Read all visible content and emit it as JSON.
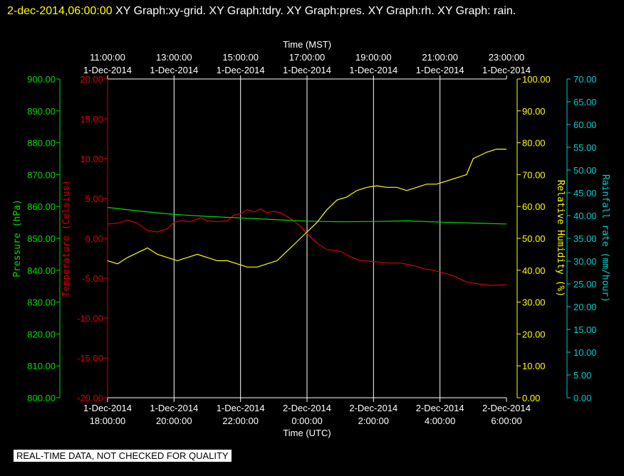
{
  "header": {
    "timestamp": "2-dec-2014,06:00:00",
    "graphs_text": " XY Graph:xy-grid.  XY Graph:tdry.  XY Graph:pres.  XY Graph:rh.  XY Graph: rain."
  },
  "notice": "REAL-TIME DATA, NOT CHECKED FOR QUALITY",
  "colors": {
    "pressure": "#00dd00",
    "temperature": "#dd0000",
    "humidity": "#ffff00",
    "rainfall": "#00cccc",
    "grid": "#ffffff"
  },
  "chart_data": {
    "type": "line",
    "top_axis": {
      "title": "Time (MST)",
      "ticks": [
        [
          "11:00:00",
          "1-Dec-2014"
        ],
        [
          "13:00:00",
          "1-Dec-2014"
        ],
        [
          "15:00:00",
          "1-Dec-2014"
        ],
        [
          "17:00:00",
          "1-Dec-2014"
        ],
        [
          "19:00:00",
          "1-Dec-2014"
        ],
        [
          "21:00:00",
          "1-Dec-2014"
        ],
        [
          "23:00:00",
          "1-Dec-2014"
        ]
      ]
    },
    "bottom_axis": {
      "title": "Time (UTC)",
      "ticks": [
        [
          "1-Dec-2014",
          "18:00:00"
        ],
        [
          "1-Dec-2014",
          "20:00:00"
        ],
        [
          "1-Dec-2014",
          "22:00:00"
        ],
        [
          "2-Dec-2014",
          "0:00:00"
        ],
        [
          "2-Dec-2014",
          "2:00:00"
        ],
        [
          "2-Dec-2014",
          "4:00:00"
        ],
        [
          "2-Dec-2014",
          "6:00:00"
        ]
      ],
      "range_hours": [
        0,
        12
      ]
    },
    "axes": {
      "pressure": {
        "label": "Pressure (hPa)",
        "range": [
          800,
          900
        ],
        "ticks": [
          "900.00",
          "890.00",
          "880.00",
          "870.00",
          "860.00",
          "850.00",
          "840.00",
          "830.00",
          "820.00",
          "810.00",
          "800.00"
        ]
      },
      "temperature": {
        "label": "Temperature (Celsius)",
        "range": [
          -20,
          20
        ],
        "ticks": [
          "20.00",
          "15.00",
          "10.00",
          "5.00",
          "0.00",
          "-5.00",
          "-10.00",
          "-15.00",
          "-20.00"
        ]
      },
      "humidity": {
        "label": "Relative Humidity (%)",
        "range": [
          0,
          100
        ],
        "ticks": [
          "100.00",
          "90.00",
          "80.00",
          "70.00",
          "60.00",
          "50.00",
          "40.00",
          "30.00",
          "20.00",
          "10.00",
          "0.00"
        ]
      },
      "rainfall": {
        "label": "Rainfall rate (mm/hour)",
        "range": [
          0,
          70
        ],
        "ticks": [
          "70.00",
          "65.00",
          "60.00",
          "55.00",
          "50.00",
          "45.00",
          "40.00",
          "35.00",
          "30.00",
          "25.00",
          "20.00",
          "15.00",
          "10.00",
          "5.00",
          "0.00"
        ]
      }
    },
    "series": [
      {
        "name": "tdry",
        "axis": "temperature",
        "points": [
          [
            0,
            1.8
          ],
          [
            0.3,
            1.9
          ],
          [
            0.6,
            2.3
          ],
          [
            0.9,
            1.9
          ],
          [
            1.2,
            1.0
          ],
          [
            1.5,
            0.8
          ],
          [
            1.8,
            1.2
          ],
          [
            2.0,
            2.0
          ],
          [
            2.2,
            2.2
          ],
          [
            2.5,
            2.1
          ],
          [
            2.8,
            2.6
          ],
          [
            3.0,
            2.2
          ],
          [
            3.3,
            2.1
          ],
          [
            3.6,
            2.2
          ],
          [
            3.8,
            2.9
          ],
          [
            4.0,
            3.1
          ],
          [
            4.2,
            3.6
          ],
          [
            4.4,
            3.3
          ],
          [
            4.6,
            3.7
          ],
          [
            4.8,
            3.2
          ],
          [
            5.0,
            3.4
          ],
          [
            5.2,
            3.2
          ],
          [
            5.5,
            2.5
          ],
          [
            5.8,
            1.5
          ],
          [
            6.0,
            0.6
          ],
          [
            6.3,
            -0.6
          ],
          [
            6.6,
            -1.4
          ],
          [
            7.0,
            -1.6
          ],
          [
            7.3,
            -2.3
          ],
          [
            7.6,
            -2.8
          ],
          [
            8.0,
            -2.9
          ],
          [
            8.4,
            -3.1
          ],
          [
            8.8,
            -3.1
          ],
          [
            9.2,
            -3.4
          ],
          [
            9.5,
            -3.8
          ],
          [
            9.8,
            -4.0
          ],
          [
            10.1,
            -4.3
          ],
          [
            10.4,
            -4.7
          ],
          [
            10.6,
            -5.1
          ],
          [
            10.8,
            -5.5
          ],
          [
            11.0,
            -5.6
          ],
          [
            11.3,
            -5.8
          ],
          [
            11.6,
            -5.9
          ],
          [
            12.0,
            -5.8
          ]
        ]
      },
      {
        "name": "pres",
        "axis": "pressure",
        "points": [
          [
            0,
            859.7
          ],
          [
            1,
            858.5
          ],
          [
            2,
            857.5
          ],
          [
            3,
            856.9
          ],
          [
            4,
            856.4
          ],
          [
            5,
            855.9
          ],
          [
            6,
            855.4
          ],
          [
            7,
            855.2
          ],
          [
            8,
            855.3
          ],
          [
            9,
            855.5
          ],
          [
            10,
            855.1
          ],
          [
            11,
            854.8
          ],
          [
            12,
            854.5
          ]
        ]
      },
      {
        "name": "rh",
        "axis": "humidity",
        "points": [
          [
            0,
            43
          ],
          [
            0.3,
            42
          ],
          [
            0.6,
            44
          ],
          [
            0.8,
            45
          ],
          [
            1.0,
            46
          ],
          [
            1.2,
            47
          ],
          [
            1.5,
            45
          ],
          [
            1.8,
            44
          ],
          [
            2.1,
            43
          ],
          [
            2.4,
            44
          ],
          [
            2.7,
            45
          ],
          [
            3.0,
            44
          ],
          [
            3.3,
            43
          ],
          [
            3.6,
            43
          ],
          [
            3.9,
            42
          ],
          [
            4.2,
            41
          ],
          [
            4.5,
            41
          ],
          [
            4.8,
            42
          ],
          [
            5.1,
            43
          ],
          [
            5.4,
            46
          ],
          [
            5.7,
            49
          ],
          [
            6.0,
            52
          ],
          [
            6.3,
            55
          ],
          [
            6.6,
            59
          ],
          [
            6.9,
            62
          ],
          [
            7.2,
            63
          ],
          [
            7.5,
            65
          ],
          [
            7.8,
            66
          ],
          [
            8.1,
            66.5
          ],
          [
            8.4,
            66
          ],
          [
            8.7,
            66
          ],
          [
            9.0,
            65
          ],
          [
            9.3,
            66
          ],
          [
            9.6,
            67
          ],
          [
            9.9,
            67
          ],
          [
            10.2,
            68
          ],
          [
            10.5,
            69
          ],
          [
            10.8,
            70
          ],
          [
            11.0,
            75
          ],
          [
            11.2,
            76
          ],
          [
            11.4,
            77
          ],
          [
            11.7,
            78
          ],
          [
            12.0,
            78
          ]
        ]
      }
    ]
  }
}
